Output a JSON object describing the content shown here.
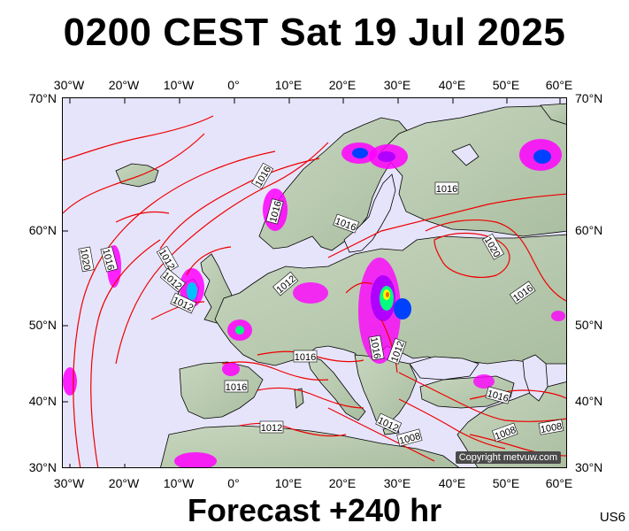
{
  "header": {
    "title": "0200 CEST Sat 19 Jul 2025"
  },
  "footer": {
    "forecast": "Forecast +240 hr",
    "model_code": "US6"
  },
  "map": {
    "background_color": "#e6e4fb",
    "land_color": "#b9cbb1",
    "isobar_color": "#ee0000",
    "precip_colors": [
      "#ff00ff",
      "#b000ff",
      "#0040ff",
      "#00c0ff",
      "#00ff80",
      "#ffff00",
      "#ff6000"
    ],
    "copyright": "Copyright metvuw.com",
    "top_lon_labels": [
      "30°W",
      "20°W",
      "10°W",
      "0°",
      "10°E",
      "20°E",
      "30°E",
      "40°E",
      "50°E",
      "60°E"
    ],
    "bottom_lon_labels": [
      "30°W",
      "20°W",
      "10°W",
      "0°",
      "10°E",
      "20°E",
      "30°E",
      "40°E",
      "50°E",
      "60°E"
    ],
    "left_lat_labels": [
      "70°N",
      "60°N",
      "50°N",
      "40°N",
      "30°N"
    ],
    "right_lat_labels": [
      "70°N",
      "60°N",
      "50°N",
      "40°N",
      "30°N"
    ],
    "isobar_labels": [
      "1016",
      "1016",
      "1016",
      "1016",
      "1020",
      "1016",
      "1012",
      "1020",
      "1016",
      "1012",
      "1012",
      "1016",
      "1016",
      "1012",
      "1016",
      "1012",
      "1016",
      "1012",
      "1008",
      "1008",
      "1008",
      "1012"
    ]
  }
}
